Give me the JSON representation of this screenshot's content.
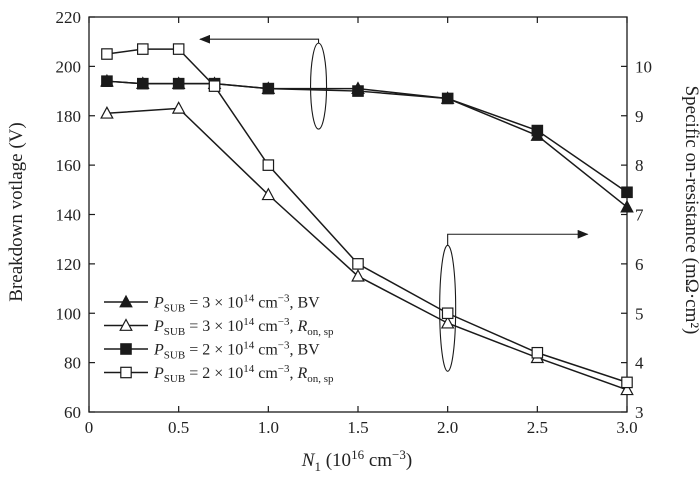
{
  "chart_data": {
    "type": "line",
    "x": [
      0.1,
      0.3,
      0.5,
      0.7,
      1.0,
      1.5,
      2.0,
      2.5,
      3.0
    ],
    "xlabel": {
      "main": "N",
      "sub": "1",
      "rest": " (10",
      "sup": "16",
      "tail": " cm",
      "sup2": "−3",
      "close": ")"
    },
    "ylabel_left": "Breakdown votlage (V)",
    "ylabel_right": "Specific on-resistance (mΩ·cm²)",
    "xlim": [
      0,
      3.0
    ],
    "ylim_left": [
      60,
      220
    ],
    "ylim_right": [
      3,
      11
    ],
    "xticks": [
      "0",
      "0.5",
      "1.0",
      "1.5",
      "2.0",
      "2.5",
      "3.0"
    ],
    "yticks_left": [
      "60",
      "80",
      "100",
      "120",
      "140",
      "160",
      "180",
      "200",
      "220"
    ],
    "yticks_right": [
      "3",
      "4",
      "5",
      "6",
      "7",
      "8",
      "9",
      "10"
    ],
    "grid": false,
    "series": [
      {
        "legend": {
          "main": "P",
          "sub": "SUB",
          "mid": " = 3 × 10",
          "sup": "14",
          "unit": " cm",
          "sup2": "−3",
          "tail": ", BV",
          "tail_sub": ""
        },
        "axis": "left",
        "marker": "filled-triangle",
        "values": [
          194,
          193,
          193,
          193,
          191,
          191,
          187,
          172,
          143
        ]
      },
      {
        "legend": {
          "main": "P",
          "sub": "SUB",
          "mid": " = 3 × 10",
          "sup": "14",
          "unit": " cm",
          "sup2": "−3",
          "tail": ", R",
          "tail_sub": "on, sp"
        },
        "axis": "right",
        "marker": "open-triangle",
        "values": [
          9.05,
          null,
          9.15,
          null,
          7.4,
          5.75,
          4.8,
          4.1,
          3.45
        ]
      },
      {
        "legend": {
          "main": "P",
          "sub": "SUB",
          "mid": " = 2 × 10",
          "sup": "14",
          "unit": " cm",
          "sup2": "−3",
          "tail": ", BV",
          "tail_sub": ""
        },
        "axis": "left",
        "marker": "filled-square",
        "values": [
          194,
          193,
          193,
          193,
          191,
          190,
          187,
          174,
          149
        ]
      },
      {
        "legend": {
          "main": "P",
          "sub": "SUB",
          "mid": " = 2 × 10",
          "sup": "14",
          "unit": " cm",
          "sup2": "−3",
          "tail": ", R",
          "tail_sub": "on, sp"
        },
        "axis": "right",
        "marker": "open-square",
        "values": [
          10.25,
          10.35,
          10.35,
          9.6,
          8.0,
          6.0,
          5.0,
          4.2,
          3.6
        ]
      }
    ],
    "annotations": [
      {
        "type": "ellipse-arrow",
        "points_to": "left-axis",
        "ellipse_center": [
          1.28,
          192
        ],
        "arrow_to": [
          0.62,
          211
        ]
      },
      {
        "type": "ellipse-arrow",
        "points_to": "right-axis",
        "ellipse_center": [
          2.0,
          5.1
        ],
        "arrow_to": [
          2.78,
          6.6
        ]
      }
    ]
  }
}
